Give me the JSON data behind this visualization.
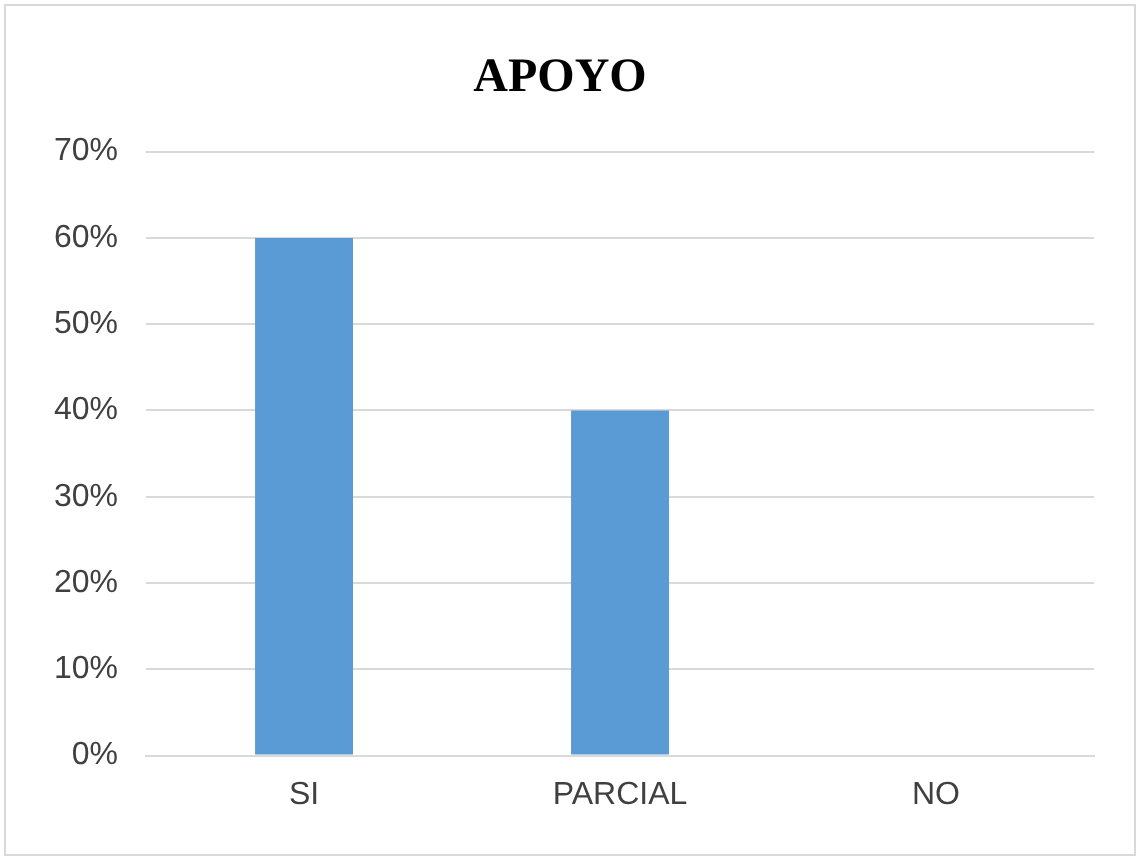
{
  "chart_data": {
    "type": "bar",
    "title": "APOYO",
    "categories": [
      "SI",
      "PARCIAL",
      "NO"
    ],
    "values": [
      60,
      40,
      0
    ],
    "color": "#5b9bd5",
    "ylim": [
      0,
      70
    ],
    "yticks": [
      {
        "value": 0,
        "label": "0%"
      },
      {
        "value": 10,
        "label": "10%"
      },
      {
        "value": 20,
        "label": "20%"
      },
      {
        "value": 30,
        "label": "30%"
      },
      {
        "value": 40,
        "label": "40%"
      },
      {
        "value": 50,
        "label": "50%"
      },
      {
        "value": 60,
        "label": "60%"
      },
      {
        "value": 70,
        "label": "70%"
      }
    ],
    "grid": "y"
  }
}
